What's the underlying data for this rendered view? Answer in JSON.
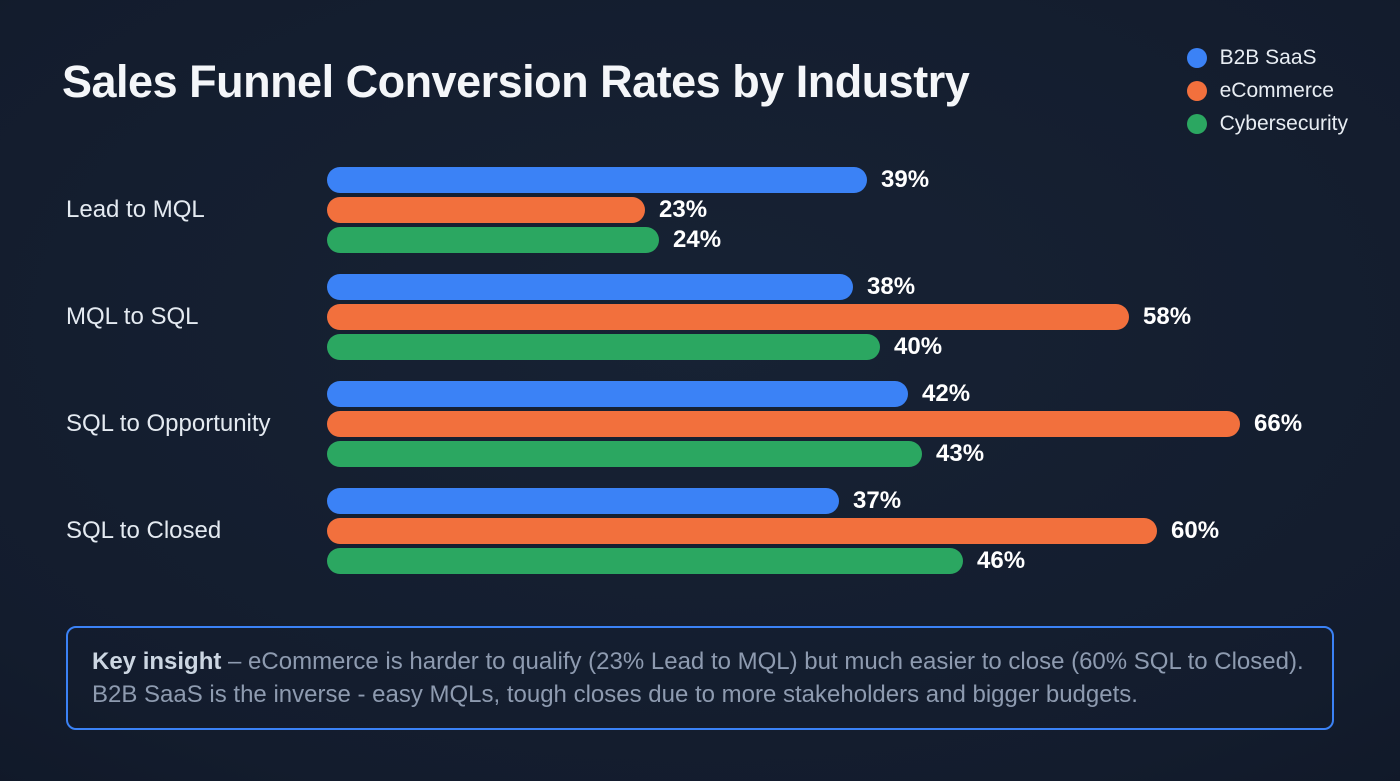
{
  "title": "Sales Funnel Conversion Rates by Industry",
  "chart_data": {
    "type": "bar",
    "orientation": "horizontal",
    "title": "Sales Funnel Conversion Rates by Industry",
    "categories": [
      "Lead to MQL",
      "MQL to SQL",
      "SQL to Opportunity",
      "SQL to Closed"
    ],
    "series": [
      {
        "name": "B2B SaaS",
        "color": "#3b82f6",
        "values": [
          39,
          38,
          42,
          37
        ]
      },
      {
        "name": "eCommerce",
        "color": "#f2703d",
        "values": [
          23,
          58,
          66,
          60
        ]
      },
      {
        "name": "Cybersecurity",
        "color": "#2ba761",
        "values": [
          24,
          40,
          43,
          46
        ]
      }
    ],
    "xlim": [
      0,
      66
    ],
    "value_suffix": "%",
    "grid": false,
    "legend_position": "top-right"
  },
  "insight": {
    "label": "Key insight",
    "text": "– eCommerce is harder to qualify (23% Lead to MQL) but much easier to close (60% SQL to Closed). B2B SaaS is the inverse - easy MQLs, tough closes due to more stakeholders and bigger budgets."
  },
  "colors": {
    "background": "#131c2d",
    "insight_border": "#3b82f6",
    "value_label": "#ffffff"
  }
}
